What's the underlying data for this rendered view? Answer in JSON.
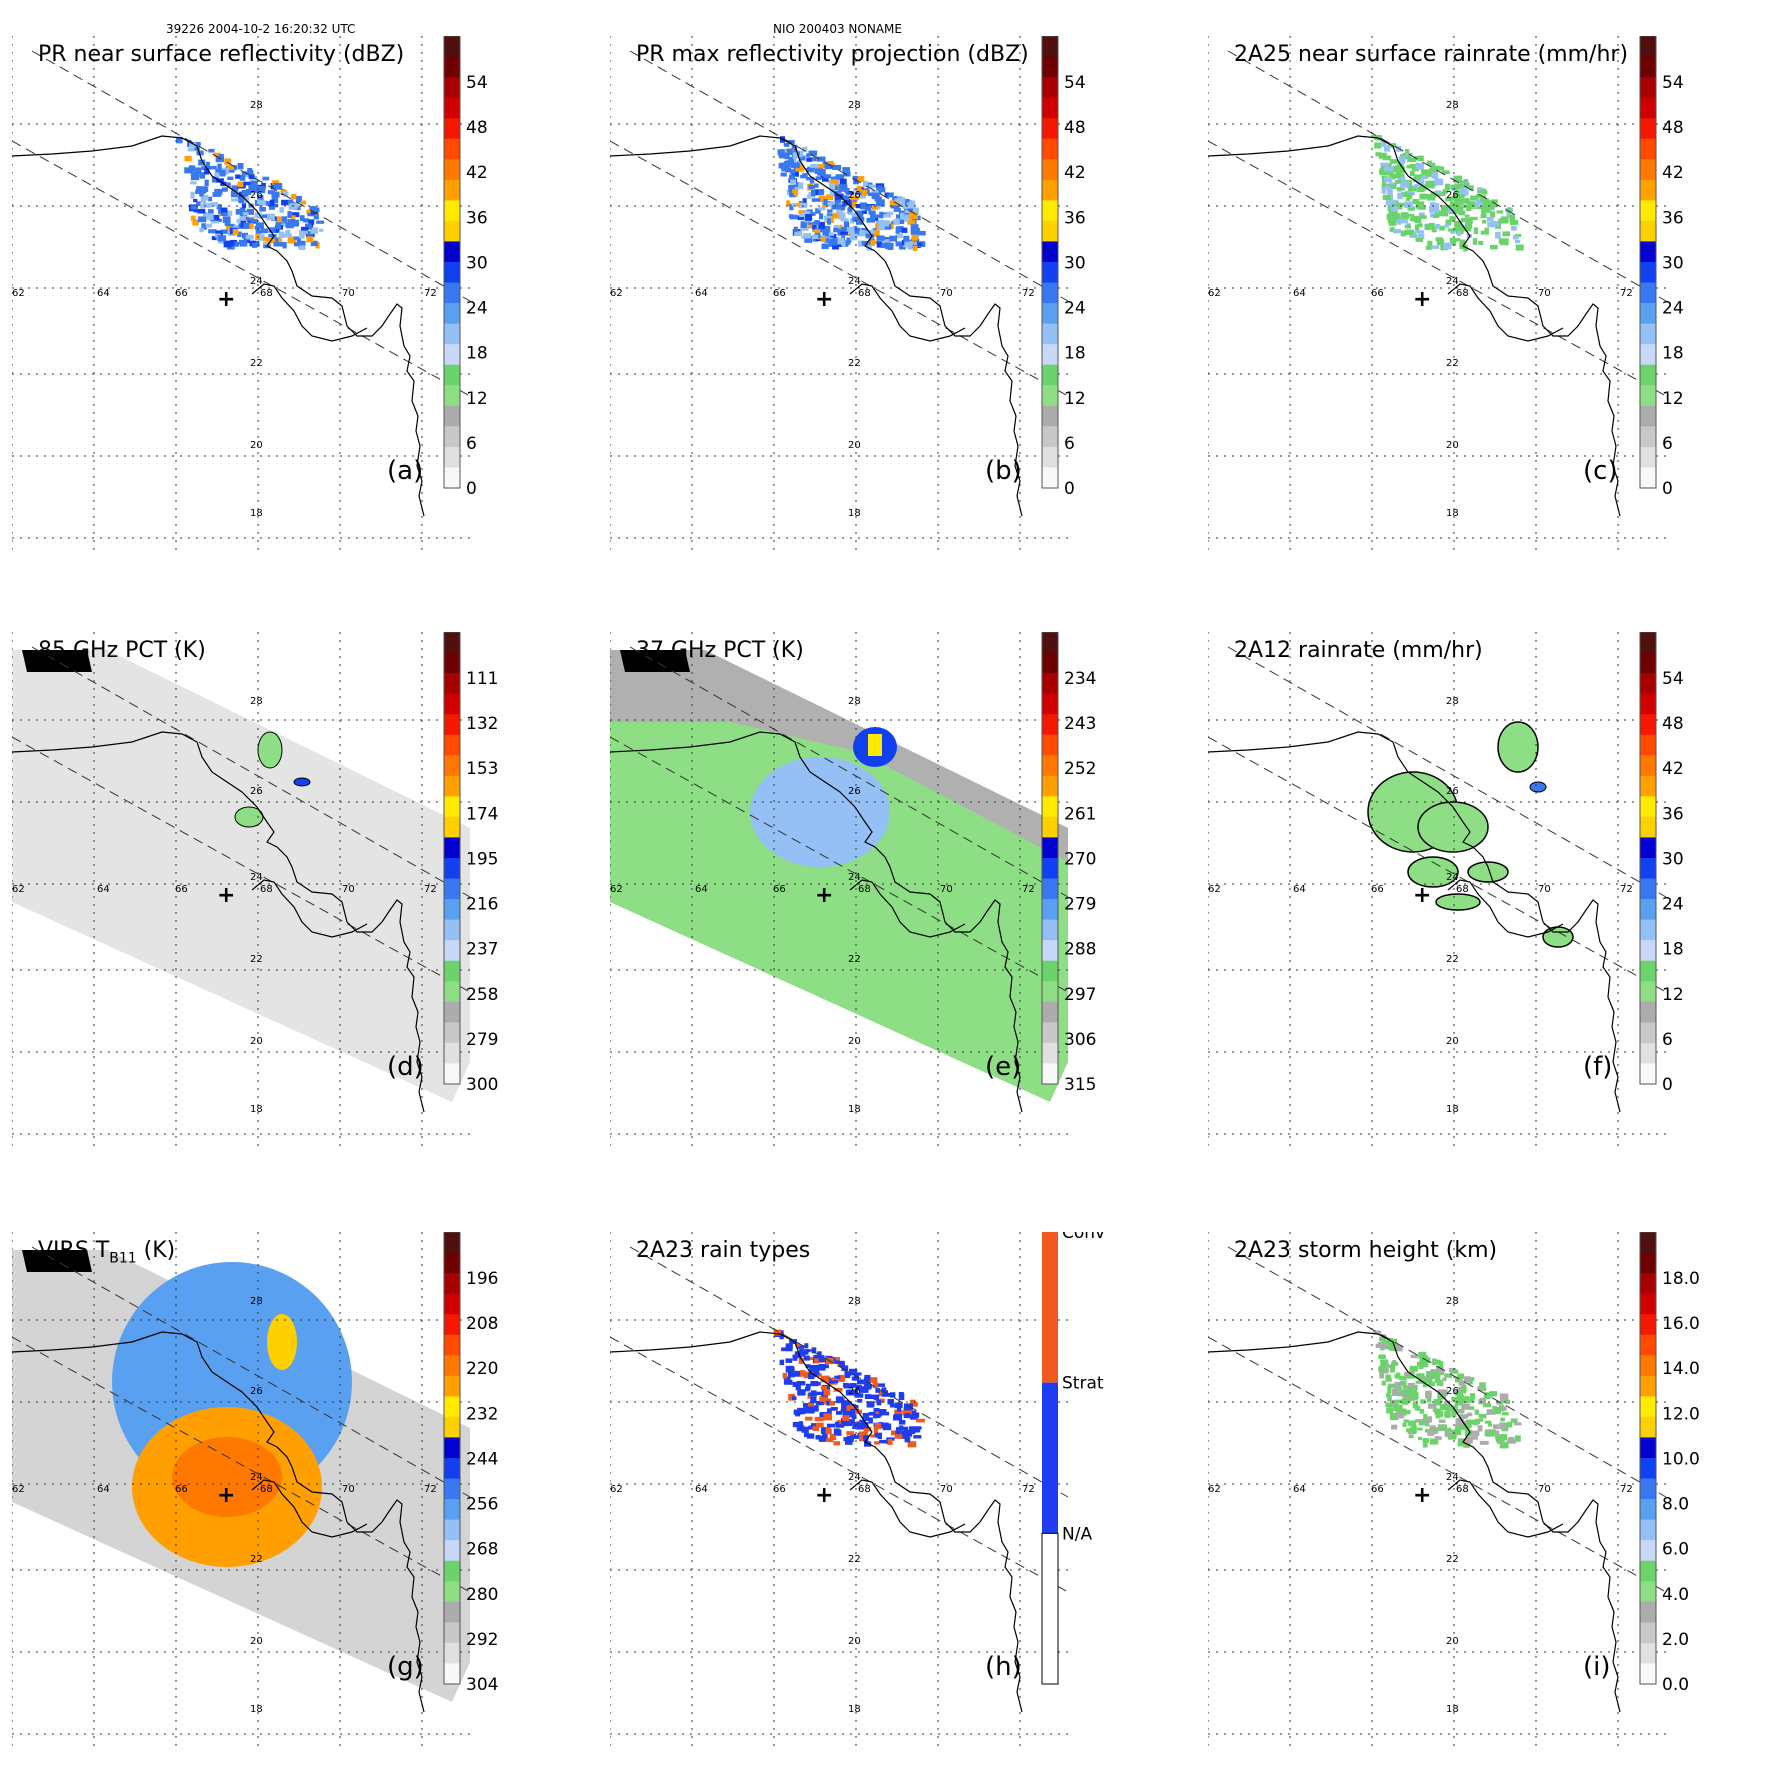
{
  "header": {
    "left": "39226 2004-10-2 16:20:32 UTC",
    "center": "NIO 200403 NONAME"
  },
  "grid": {
    "lon_labels": [
      "62",
      "64",
      "66",
      "68",
      "70",
      "72"
    ],
    "lat_labels": [
      "28",
      "26",
      "24",
      "22",
      "20",
      "18"
    ]
  },
  "panels": [
    {
      "title": "PR near surface reflectivity (dBZ)",
      "label": "(a)",
      "colorbar": {
        "type": "continuous",
        "ticks": [
          "54",
          "48",
          "42",
          "36",
          "30",
          "24",
          "18",
          "12",
          "6",
          "0"
        ]
      }
    },
    {
      "title": "PR max reflectivity projection (dBZ)",
      "label": "(b)",
      "colorbar": {
        "type": "continuous",
        "ticks": [
          "54",
          "48",
          "42",
          "36",
          "30",
          "24",
          "18",
          "12",
          "6",
          "0"
        ]
      }
    },
    {
      "title": "2A25 near surface rainrate (mm/hr)",
      "label": "(c)",
      "colorbar": {
        "type": "continuous",
        "ticks": [
          "54",
          "48",
          "42",
          "36",
          "30",
          "24",
          "18",
          "12",
          "6",
          "0"
        ]
      }
    },
    {
      "title": "85 GHz PCT (K)",
      "label": "(d)",
      "colorbar": {
        "type": "continuous",
        "ticks": [
          "111",
          "132",
          "153",
          "174",
          "195",
          "216",
          "237",
          "258",
          "279",
          "300"
        ]
      }
    },
    {
      "title": "37 GHz PCT (K)",
      "label": "(e)",
      "colorbar": {
        "type": "continuous",
        "ticks": [
          "234",
          "243",
          "252",
          "261",
          "270",
          "279",
          "288",
          "297",
          "306",
          "315"
        ]
      }
    },
    {
      "title": "2A12 rainrate (mm/hr)",
      "label": "(f)",
      "colorbar": {
        "type": "continuous",
        "ticks": [
          "54",
          "48",
          "42",
          "36",
          "30",
          "24",
          "18",
          "12",
          "6",
          "0"
        ]
      }
    },
    {
      "title": "VIRS T",
      "title_sub": "B11",
      "title_suffix": " (K)",
      "label": "(g)",
      "colorbar": {
        "type": "continuous",
        "ticks": [
          "196",
          "208",
          "220",
          "232",
          "244",
          "256",
          "268",
          "280",
          "292",
          "304"
        ]
      }
    },
    {
      "title": "2A23 rain types",
      "label": "(h)",
      "colorbar": {
        "type": "categorical",
        "ticks": [
          "Conv",
          "Strat",
          "N/A"
        ]
      }
    },
    {
      "title": "2A23 storm height (km)",
      "label": "(i)",
      "colorbar": {
        "type": "continuous",
        "ticks": [
          "18.0",
          "16.0",
          "14.0",
          "12.0",
          "10.0",
          "8.0",
          "6.0",
          "4.0",
          "2.0",
          "0.0"
        ]
      }
    }
  ],
  "colors": {
    "scale": [
      "#f8f8f8",
      "#e0e0e0",
      "#c8c8c8",
      "#acacac",
      "#8ede86",
      "#6ad46a",
      "#c8d8f8",
      "#94c0f6",
      "#5aa0f0",
      "#3878f0",
      "#1040f0",
      "#0000d0",
      "#ffd000",
      "#ffea00",
      "#ffa000",
      "#ff7800",
      "#ff4a00",
      "#f41800",
      "#d00000",
      "#a80000",
      "#6e0000",
      "#501010"
    ],
    "conv": "#f05a1e",
    "strat": "#1e3cf0"
  }
}
